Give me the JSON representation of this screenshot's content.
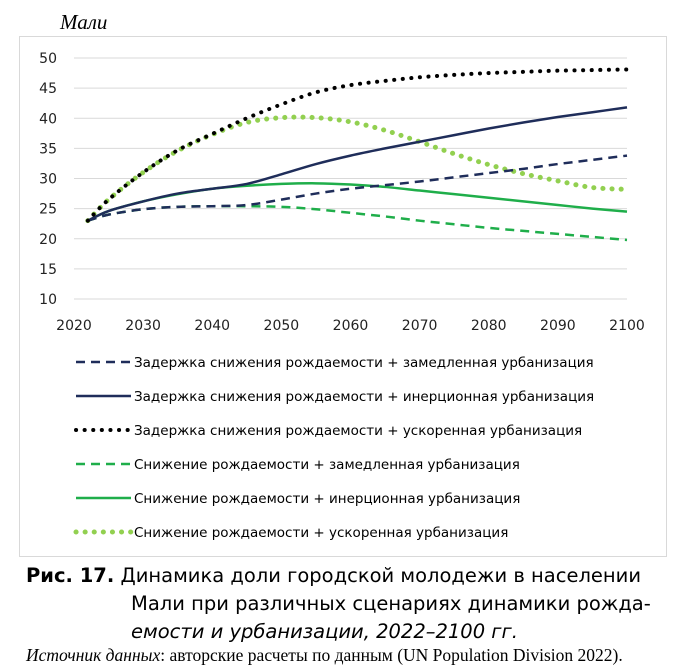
{
  "chart_data": {
    "type": "line",
    "title": "",
    "ylabel": "Мали",
    "xlabel": "",
    "xlim": [
      2020,
      2100
    ],
    "ylim": [
      10,
      50
    ],
    "xticks": [
      "2020",
      "2030",
      "2040",
      "2050",
      "2060",
      "2070",
      "2080",
      "2090",
      "2100"
    ],
    "yticks": [
      "10",
      "15",
      "20",
      "25",
      "30",
      "35",
      "40",
      "45",
      "50"
    ],
    "grid": "horizontal",
    "legend_position": "bottom",
    "series": [
      {
        "name": "Задержка снижения рождаемости + замедленная урбанизация",
        "color": "#1f2d5a",
        "style": "dashed",
        "x": [
          2022,
          2025,
          2030,
          2035,
          2040,
          2045,
          2050,
          2055,
          2060,
          2065,
          2070,
          2075,
          2080,
          2085,
          2090,
          2095,
          2100
        ],
        "y": [
          23.0,
          24.0,
          24.9,
          25.3,
          25.4,
          25.6,
          26.5,
          27.5,
          28.3,
          28.9,
          29.5,
          30.2,
          30.9,
          31.6,
          32.4,
          33.1,
          33.8
        ]
      },
      {
        "name": "Задержка снижения рождаемости + инерционная урбанизация",
        "color": "#1f2d5a",
        "style": "solid",
        "x": [
          2022,
          2025,
          2030,
          2035,
          2040,
          2045,
          2050,
          2055,
          2060,
          2065,
          2070,
          2075,
          2080,
          2085,
          2090,
          2095,
          2100
        ],
        "y": [
          23.0,
          24.6,
          26.2,
          27.5,
          28.3,
          29.1,
          30.7,
          32.4,
          33.8,
          35.0,
          36.1,
          37.2,
          38.3,
          39.3,
          40.2,
          41.0,
          41.8
        ]
      },
      {
        "name": "Задержка снижения рождаемости + ускоренная урбанизация",
        "color": "#000000",
        "style": "dotted",
        "x": [
          2022,
          2025,
          2030,
          2035,
          2040,
          2045,
          2050,
          2055,
          2060,
          2065,
          2070,
          2075,
          2080,
          2085,
          2090,
          2095,
          2100
        ],
        "y": [
          23.0,
          26.5,
          31.0,
          34.7,
          37.4,
          40.0,
          42.3,
          44.3,
          45.5,
          46.2,
          46.8,
          47.2,
          47.5,
          47.7,
          47.9,
          48.0,
          48.1
        ]
      },
      {
        "name": "Снижение рождаемости + замедленная урбанизация",
        "color": "#1fae4a",
        "style": "dashed",
        "x": [
          2022,
          2025,
          2030,
          2035,
          2040,
          2045,
          2050,
          2055,
          2060,
          2065,
          2070,
          2075,
          2080,
          2085,
          2090,
          2095,
          2100
        ],
        "y": [
          23.0,
          24.0,
          24.9,
          25.3,
          25.4,
          25.4,
          25.3,
          24.9,
          24.3,
          23.7,
          23.0,
          22.4,
          21.8,
          21.3,
          20.8,
          20.3,
          19.8
        ]
      },
      {
        "name": "Снижение рождаемости + инерционная урбанизация",
        "color": "#1fae4a",
        "style": "solid",
        "x": [
          2022,
          2025,
          2030,
          2035,
          2040,
          2045,
          2050,
          2055,
          2060,
          2065,
          2070,
          2075,
          2080,
          2085,
          2090,
          2095,
          2100
        ],
        "y": [
          23.0,
          24.6,
          26.2,
          27.4,
          28.3,
          28.8,
          29.1,
          29.2,
          29.0,
          28.6,
          28.0,
          27.4,
          26.8,
          26.2,
          25.6,
          25.0,
          24.5
        ]
      },
      {
        "name": "Снижение рождаемости + ускоренная урбанизация",
        "color": "#92d050",
        "style": "dotted-thick",
        "x": [
          2022,
          2025,
          2030,
          2035,
          2040,
          2045,
          2050,
          2055,
          2060,
          2065,
          2070,
          2075,
          2080,
          2085,
          2090,
          2095,
          2100
        ],
        "y": [
          23.0,
          26.5,
          31.0,
          34.6,
          37.3,
          39.3,
          40.1,
          40.1,
          39.4,
          38.0,
          36.1,
          34.1,
          32.3,
          30.8,
          29.6,
          28.5,
          28.2
        ]
      }
    ]
  },
  "caption": {
    "number": "Рис. 17.",
    "line1": "Динамика доли городской молодежи в населении",
    "line2": "Мали при различных сценариях динамики рожда-",
    "line3": "емости и урбанизации, 2022–2100 гг."
  },
  "source": {
    "label": "Источник данных",
    "text": ": авторские расчеты по данным (UN Population Division 2022)."
  },
  "colors": {
    "navy": "#1f2d5a",
    "black": "#000000",
    "green": "#1fae4a",
    "light_green": "#92d050",
    "grid": "#d9d9d9"
  }
}
